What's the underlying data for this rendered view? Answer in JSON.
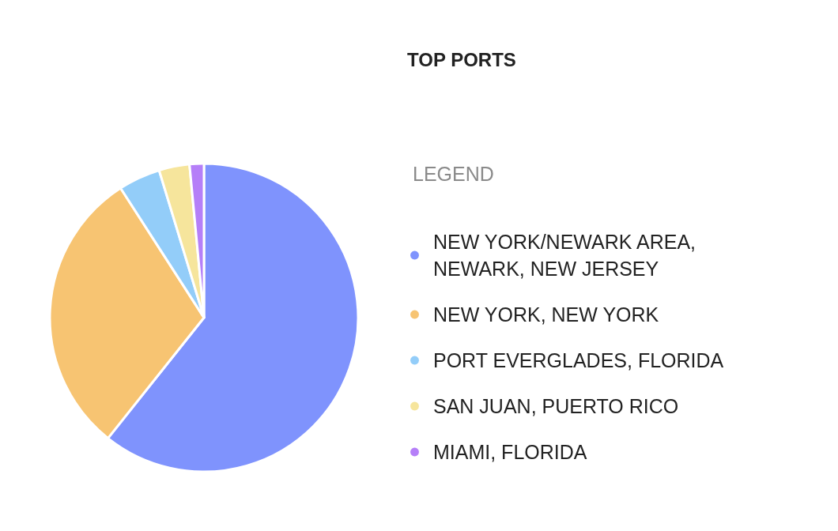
{
  "chart_data": {
    "type": "pie",
    "title": "TOP PORTS",
    "legend_title": "LEGEND",
    "legend": "right",
    "categories": [
      "NEW YORK/NEWARK AREA, NEWARK, NEW JERSEY",
      "NEW YORK, NEW YORK",
      "PORT EVERGLADES, FLORIDA",
      "SAN JUAN, PUERTO RICO",
      "MIAMI, FLORIDA"
    ],
    "values": [
      60.7,
      30.2,
      4.4,
      3.2,
      1.5
    ],
    "colors": [
      "#7f93fd",
      "#f7c472",
      "#93cdf9",
      "#f6e59c",
      "#b57ff8"
    ]
  }
}
